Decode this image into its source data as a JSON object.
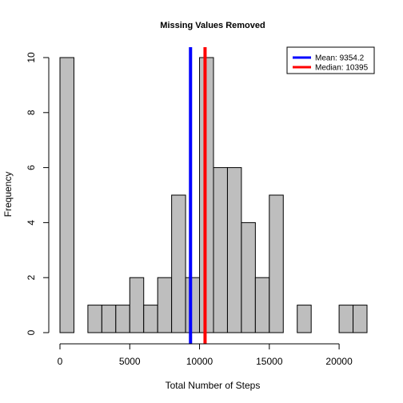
{
  "chart_data": {
    "type": "bar",
    "title": "Missing Values Removed",
    "xlabel": "Total Number of Steps",
    "ylabel": "Frequency",
    "xlim": [
      0,
      22000
    ],
    "ylim": [
      0,
      10
    ],
    "x_ticks": [
      0,
      5000,
      10000,
      15000,
      20000
    ],
    "y_ticks": [
      0,
      2,
      4,
      6,
      8,
      10
    ],
    "bin_width": 1000,
    "bins": [
      {
        "start": 0,
        "end": 1000,
        "count": 10
      },
      {
        "start": 1000,
        "end": 2000,
        "count": 0
      },
      {
        "start": 2000,
        "end": 3000,
        "count": 1
      },
      {
        "start": 3000,
        "end": 4000,
        "count": 1
      },
      {
        "start": 4000,
        "end": 5000,
        "count": 1
      },
      {
        "start": 5000,
        "end": 6000,
        "count": 2
      },
      {
        "start": 6000,
        "end": 7000,
        "count": 1
      },
      {
        "start": 7000,
        "end": 8000,
        "count": 2
      },
      {
        "start": 8000,
        "end": 9000,
        "count": 5
      },
      {
        "start": 9000,
        "end": 10000,
        "count": 2
      },
      {
        "start": 10000,
        "end": 11000,
        "count": 10
      },
      {
        "start": 11000,
        "end": 12000,
        "count": 6
      },
      {
        "start": 12000,
        "end": 13000,
        "count": 6
      },
      {
        "start": 13000,
        "end": 14000,
        "count": 4
      },
      {
        "start": 14000,
        "end": 15000,
        "count": 2
      },
      {
        "start": 15000,
        "end": 16000,
        "count": 5
      },
      {
        "start": 16000,
        "end": 17000,
        "count": 0
      },
      {
        "start": 17000,
        "end": 18000,
        "count": 1
      },
      {
        "start": 18000,
        "end": 19000,
        "count": 0
      },
      {
        "start": 19000,
        "end": 20000,
        "count": 0
      },
      {
        "start": 20000,
        "end": 21000,
        "count": 1
      },
      {
        "start": 21000,
        "end": 22000,
        "count": 1
      }
    ],
    "bar_fill": "#bebebe",
    "bar_stroke": "#000000",
    "reference_lines": [
      {
        "name": "mean",
        "value": 9354.2,
        "color": "#0000ff",
        "legend": "Mean:  9354.2"
      },
      {
        "name": "median",
        "value": 10395,
        "color": "#ff0000",
        "legend": "Median:  10395"
      }
    ],
    "legend_position": "top-right",
    "grid": false
  }
}
